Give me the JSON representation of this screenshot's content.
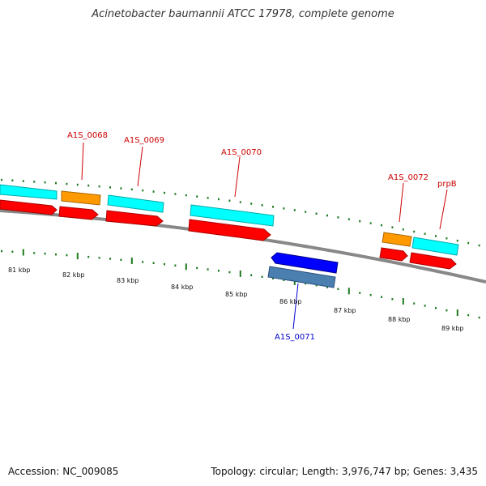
{
  "title": "Acinetobacter baumannii ATCC 17978, complete genome",
  "footer": {
    "accession": "Accession: NC_009085",
    "summary": "Topology: circular; Length: 3,976,747 bp; Genes: 3,435"
  },
  "colors": {
    "tick": "#1f7a1f",
    "cds": "#ff0000",
    "gene_forward": "#00ffff",
    "trna": "#ff9900",
    "cds_reverse": "#0000ff",
    "gene_reverse": "#4a7fb0",
    "backbone": "#888888",
    "label_forward": "#cc0000",
    "label_reverse": "#0000cc"
  },
  "scale_labels": [
    "81 kbp",
    "82 kbp",
    "83 kbp",
    "84 kbp",
    "85 kbp",
    "86 kbp",
    "87 kbp",
    "88 kbp",
    "89 kbp"
  ],
  "features": [
    {
      "name": "A1S_0068",
      "strand": "forward",
      "type": "tRNA"
    },
    {
      "name": "A1S_0069",
      "strand": "forward",
      "type": "gene"
    },
    {
      "name": "A1S_0070",
      "strand": "forward",
      "type": "gene"
    },
    {
      "name": "A1S_0071",
      "strand": "reverse",
      "type": "gene"
    },
    {
      "name": "A1S_0072",
      "strand": "forward",
      "type": "tRNA"
    },
    {
      "name": "prpB",
      "strand": "forward",
      "type": "gene"
    }
  ]
}
